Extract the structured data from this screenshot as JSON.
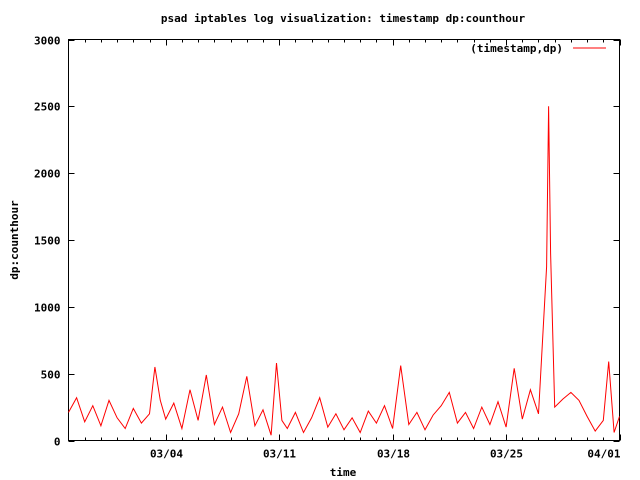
{
  "chart_data": {
    "type": "line",
    "title": "psad iptables log visualization: timestamp dp:counthour",
    "xlabel": "time",
    "ylabel": "dp:counthour",
    "x_range": [
      "2024-02-27T00:00",
      "2024-04-01T00:00"
    ],
    "xticks": [
      {
        "date": "2024-03-04",
        "label": "03/04"
      },
      {
        "date": "2024-03-11",
        "label": "03/11"
      },
      {
        "date": "2024-03-18",
        "label": "03/18"
      },
      {
        "date": "2024-03-25",
        "label": "03/25"
      },
      {
        "date": "2024-04-01",
        "label": "04/01"
      }
    ],
    "ylim": [
      0,
      3000
    ],
    "yticks": [
      0,
      500,
      1000,
      1500,
      2000,
      2500,
      3000
    ],
    "grid": false,
    "legend_position": "top-right",
    "series": [
      {
        "name": "(timestamp,dp)",
        "color": "#ff0000",
        "points": [
          [
            "2024-02-27T00:00",
            210
          ],
          [
            "2024-02-27T12:00",
            320
          ],
          [
            "2024-02-28T00:00",
            140
          ],
          [
            "2024-02-28T12:00",
            260
          ],
          [
            "2024-02-29T00:00",
            110
          ],
          [
            "2024-02-29T12:00",
            300
          ],
          [
            "2024-03-01T00:00",
            170
          ],
          [
            "2024-03-01T12:00",
            90
          ],
          [
            "2024-03-02T00:00",
            240
          ],
          [
            "2024-03-02T12:00",
            130
          ],
          [
            "2024-03-03T00:00",
            200
          ],
          [
            "2024-03-03T08:00",
            550
          ],
          [
            "2024-03-03T16:00",
            300
          ],
          [
            "2024-03-04T00:00",
            160
          ],
          [
            "2024-03-04T12:00",
            280
          ],
          [
            "2024-03-05T00:00",
            90
          ],
          [
            "2024-03-05T12:00",
            380
          ],
          [
            "2024-03-06T00:00",
            150
          ],
          [
            "2024-03-06T12:00",
            490
          ],
          [
            "2024-03-07T00:00",
            120
          ],
          [
            "2024-03-07T12:00",
            250
          ],
          [
            "2024-03-08T00:00",
            60
          ],
          [
            "2024-03-08T12:00",
            200
          ],
          [
            "2024-03-09T00:00",
            480
          ],
          [
            "2024-03-09T12:00",
            110
          ],
          [
            "2024-03-10T00:00",
            230
          ],
          [
            "2024-03-10T12:00",
            40
          ],
          [
            "2024-03-10T20:00",
            580
          ],
          [
            "2024-03-11T04:00",
            150
          ],
          [
            "2024-03-11T12:00",
            90
          ],
          [
            "2024-03-12T00:00",
            210
          ],
          [
            "2024-03-12T12:00",
            60
          ],
          [
            "2024-03-13T00:00",
            170
          ],
          [
            "2024-03-13T12:00",
            320
          ],
          [
            "2024-03-14T00:00",
            100
          ],
          [
            "2024-03-14T12:00",
            200
          ],
          [
            "2024-03-15T00:00",
            80
          ],
          [
            "2024-03-15T12:00",
            170
          ],
          [
            "2024-03-16T00:00",
            60
          ],
          [
            "2024-03-16T12:00",
            220
          ],
          [
            "2024-03-17T00:00",
            130
          ],
          [
            "2024-03-17T12:00",
            260
          ],
          [
            "2024-03-18T00:00",
            90
          ],
          [
            "2024-03-18T12:00",
            560
          ],
          [
            "2024-03-19T00:00",
            120
          ],
          [
            "2024-03-19T12:00",
            210
          ],
          [
            "2024-03-20T00:00",
            80
          ],
          [
            "2024-03-20T12:00",
            190
          ],
          [
            "2024-03-21T00:00",
            260
          ],
          [
            "2024-03-21T12:00",
            360
          ],
          [
            "2024-03-22T00:00",
            130
          ],
          [
            "2024-03-22T12:00",
            210
          ],
          [
            "2024-03-23T00:00",
            90
          ],
          [
            "2024-03-23T12:00",
            250
          ],
          [
            "2024-03-24T00:00",
            120
          ],
          [
            "2024-03-24T12:00",
            290
          ],
          [
            "2024-03-25T00:00",
            100
          ],
          [
            "2024-03-25T12:00",
            540
          ],
          [
            "2024-03-26T00:00",
            160
          ],
          [
            "2024-03-26T12:00",
            380
          ],
          [
            "2024-03-27T00:00",
            200
          ],
          [
            "2024-03-27T12:00",
            1300
          ],
          [
            "2024-03-27T15:00",
            2500
          ],
          [
            "2024-03-27T18:00",
            1400
          ],
          [
            "2024-03-28T00:00",
            250
          ],
          [
            "2024-03-28T12:00",
            310
          ],
          [
            "2024-03-29T00:00",
            360
          ],
          [
            "2024-03-29T12:00",
            300
          ],
          [
            "2024-03-30T00:00",
            180
          ],
          [
            "2024-03-30T12:00",
            70
          ],
          [
            "2024-03-31T00:00",
            150
          ],
          [
            "2024-03-31T08:00",
            590
          ],
          [
            "2024-03-31T16:00",
            60
          ],
          [
            "2024-04-01T00:00",
            180
          ]
        ]
      }
    ]
  }
}
